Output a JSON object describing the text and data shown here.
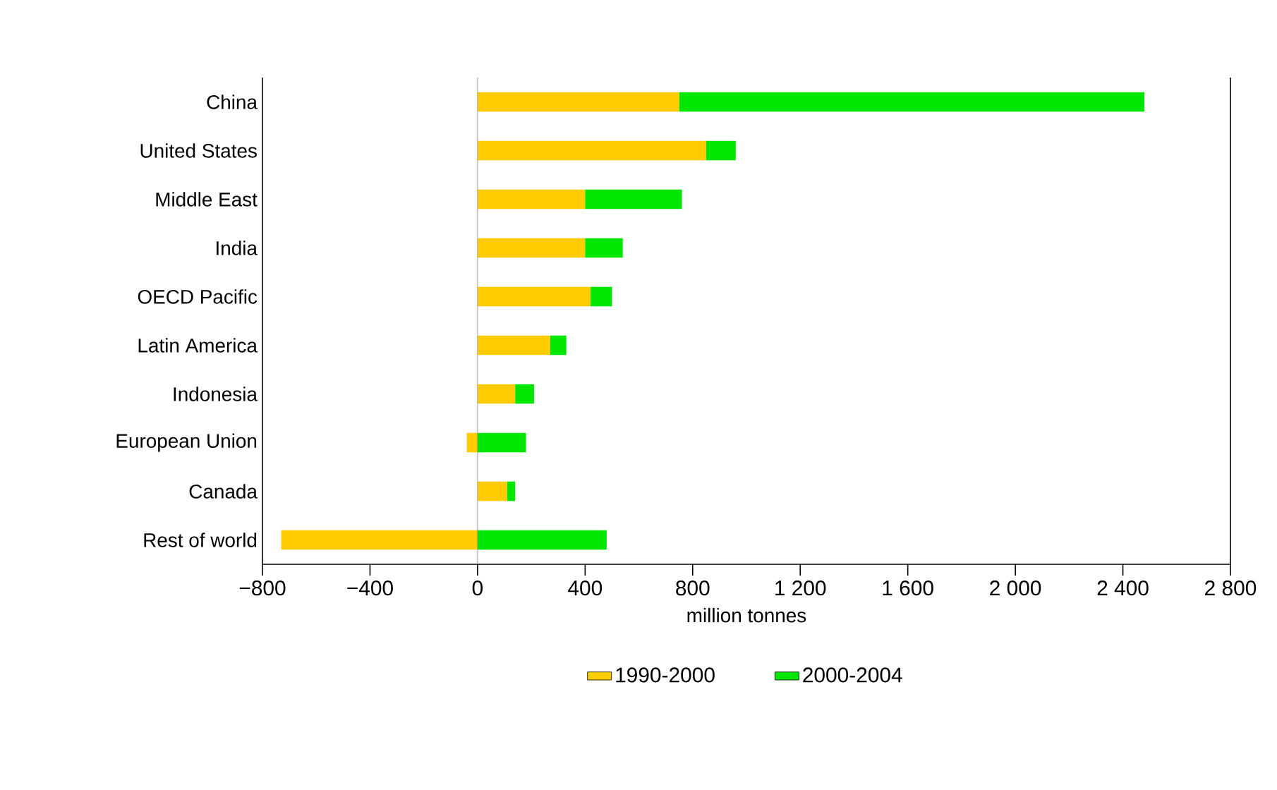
{
  "chart_data": {
    "type": "bar",
    "orientation": "horizontal",
    "stacked": true,
    "categories": [
      "China",
      "United States",
      "Middle East",
      "India",
      "OECD Pacific",
      "Latin America",
      "Indonesia",
      "European Union",
      "Canada",
      "Rest of world"
    ],
    "series": [
      {
        "name": "1990-2000",
        "color": "#ffcc00",
        "values": [
          750,
          850,
          400,
          400,
          420,
          270,
          140,
          -40,
          110,
          -730
        ]
      },
      {
        "name": "2000-2004",
        "color": "#00e600",
        "values": [
          1730,
          110,
          360,
          140,
          80,
          60,
          70,
          180,
          30,
          480
        ]
      }
    ],
    "xlim": [
      -800,
      2800
    ],
    "xticks": [
      {
        "value": -800,
        "label": "−800"
      },
      {
        "value": -400,
        "label": "−400"
      },
      0,
      400,
      800,
      {
        "value": 1200,
        "label": "1 200"
      },
      {
        "value": 1600,
        "label": "1 600"
      },
      {
        "value": 2000,
        "label": "2 000"
      },
      {
        "value": 2400,
        "label": "2 400"
      },
      {
        "value": 2800,
        "label": "2 800"
      }
    ],
    "xlabel": "million tonnes",
    "ref_lines": [
      {
        "axis": "x",
        "value": 0,
        "color": "#808080"
      }
    ],
    "legend": "bottom"
  }
}
